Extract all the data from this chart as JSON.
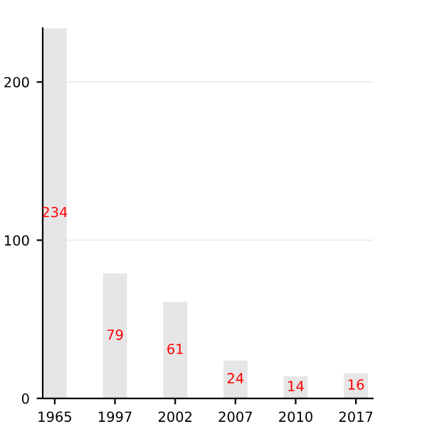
{
  "chart_data": {
    "type": "bar",
    "categories": [
      "1965",
      "1997",
      "2002",
      "2007",
      "2010",
      "2017"
    ],
    "values": [
      234,
      79,
      61,
      24,
      14,
      16
    ],
    "color": "#e6e6e6",
    "ylim": [
      0,
      234
    ],
    "yticks": [
      0,
      100,
      200
    ],
    "grid": "y",
    "data_labels": true
  }
}
